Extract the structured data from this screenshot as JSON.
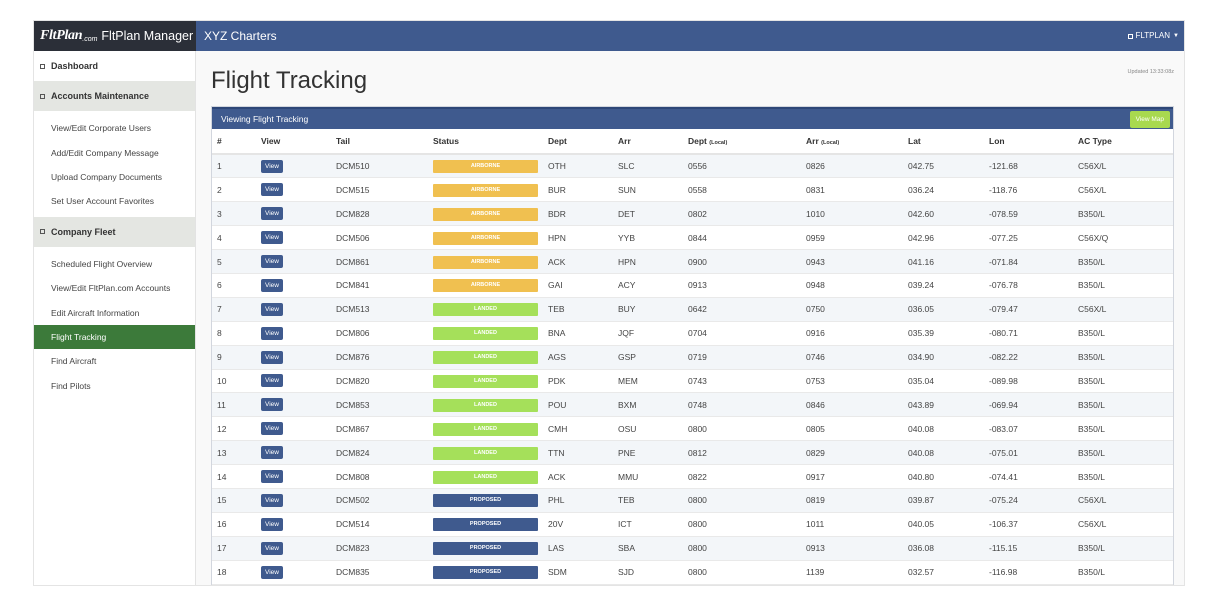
{
  "brand": {
    "logo_text": "FltPlan",
    "logo_suffix": ".com",
    "app_title": "FltPlan Manager"
  },
  "header": {
    "company": "XYZ Charters",
    "user": "FLTPLAN"
  },
  "sidebar": {
    "dashboard": "Dashboard",
    "accounts": {
      "title": "Accounts Maintenance",
      "items": [
        "View/Edit Corporate Users",
        "Add/Edit Company Message",
        "Upload Company Documents",
        "Set User Account Favorites"
      ]
    },
    "fleet": {
      "title": "Company Fleet",
      "items": [
        "Scheduled Flight Overview",
        "View/Edit FltPlan.com Accounts",
        "Edit Aircraft Information",
        "Flight Tracking",
        "Find Aircraft",
        "Find Pilots"
      ]
    },
    "active_item": "Flight Tracking"
  },
  "page": {
    "title": "Flight Tracking",
    "updated": "Updated 13:33:08z"
  },
  "panel": {
    "title": "Viewing Flight Tracking",
    "map_button": "View Map"
  },
  "table": {
    "headers": {
      "num": "#",
      "view": "View",
      "tail": "Tail",
      "status": "Status",
      "dept": "Dept",
      "arr": "Arr",
      "dept_local": "Dept",
      "dept_local_small": "(Local)",
      "arr_local": "Arr",
      "arr_local_small": "(Local)",
      "lat": "Lat",
      "lon": "Lon",
      "actype": "AC Type"
    },
    "view_label": "View",
    "status_colors": {
      "AIRBORNE": "#f0c050",
      "LANDED": "#a5e05a",
      "PROPOSED": "#3f5a8e"
    },
    "rows": [
      {
        "num": "1",
        "tail": "DCM510",
        "status": "AIRBORNE",
        "dept": "OTH",
        "arr": "SLC",
        "dept_local": "0556",
        "arr_local": "0826",
        "lat": "042.75",
        "lon": "-121.68",
        "actype": "C56X/L"
      },
      {
        "num": "2",
        "tail": "DCM515",
        "status": "AIRBORNE",
        "dept": "BUR",
        "arr": "SUN",
        "dept_local": "0558",
        "arr_local": "0831",
        "lat": "036.24",
        "lon": "-118.76",
        "actype": "C56X/L"
      },
      {
        "num": "3",
        "tail": "DCM828",
        "status": "AIRBORNE",
        "dept": "BDR",
        "arr": "DET",
        "dept_local": "0802",
        "arr_local": "1010",
        "lat": "042.60",
        "lon": "-078.59",
        "actype": "B350/L"
      },
      {
        "num": "4",
        "tail": "DCM506",
        "status": "AIRBORNE",
        "dept": "HPN",
        "arr": "YYB",
        "dept_local": "0844",
        "arr_local": "0959",
        "lat": "042.96",
        "lon": "-077.25",
        "actype": "C56X/Q"
      },
      {
        "num": "5",
        "tail": "DCM861",
        "status": "AIRBORNE",
        "dept": "ACK",
        "arr": "HPN",
        "dept_local": "0900",
        "arr_local": "0943",
        "lat": "041.16",
        "lon": "-071.84",
        "actype": "B350/L"
      },
      {
        "num": "6",
        "tail": "DCM841",
        "status": "AIRBORNE",
        "dept": "GAI",
        "arr": "ACY",
        "dept_local": "0913",
        "arr_local": "0948",
        "lat": "039.24",
        "lon": "-076.78",
        "actype": "B350/L"
      },
      {
        "num": "7",
        "tail": "DCM513",
        "status": "LANDED",
        "dept": "TEB",
        "arr": "BUY",
        "dept_local": "0642",
        "arr_local": "0750",
        "lat": "036.05",
        "lon": "-079.47",
        "actype": "C56X/L"
      },
      {
        "num": "8",
        "tail": "DCM806",
        "status": "LANDED",
        "dept": "BNA",
        "arr": "JQF",
        "dept_local": "0704",
        "arr_local": "0916",
        "lat": "035.39",
        "lon": "-080.71",
        "actype": "B350/L"
      },
      {
        "num": "9",
        "tail": "DCM876",
        "status": "LANDED",
        "dept": "AGS",
        "arr": "GSP",
        "dept_local": "0719",
        "arr_local": "0746",
        "lat": "034.90",
        "lon": "-082.22",
        "actype": "B350/L"
      },
      {
        "num": "10",
        "tail": "DCM820",
        "status": "LANDED",
        "dept": "PDK",
        "arr": "MEM",
        "dept_local": "0743",
        "arr_local": "0753",
        "lat": "035.04",
        "lon": "-089.98",
        "actype": "B350/L"
      },
      {
        "num": "11",
        "tail": "DCM853",
        "status": "LANDED",
        "dept": "POU",
        "arr": "BXM",
        "dept_local": "0748",
        "arr_local": "0846",
        "lat": "043.89",
        "lon": "-069.94",
        "actype": "B350/L"
      },
      {
        "num": "12",
        "tail": "DCM867",
        "status": "LANDED",
        "dept": "CMH",
        "arr": "OSU",
        "dept_local": "0800",
        "arr_local": "0805",
        "lat": "040.08",
        "lon": "-083.07",
        "actype": "B350/L"
      },
      {
        "num": "13",
        "tail": "DCM824",
        "status": "LANDED",
        "dept": "TTN",
        "arr": "PNE",
        "dept_local": "0812",
        "arr_local": "0829",
        "lat": "040.08",
        "lon": "-075.01",
        "actype": "B350/L"
      },
      {
        "num": "14",
        "tail": "DCM808",
        "status": "LANDED",
        "dept": "ACK",
        "arr": "MMU",
        "dept_local": "0822",
        "arr_local": "0917",
        "lat": "040.80",
        "lon": "-074.41",
        "actype": "B350/L"
      },
      {
        "num": "15",
        "tail": "DCM502",
        "status": "PROPOSED",
        "dept": "PHL",
        "arr": "TEB",
        "dept_local": "0800",
        "arr_local": "0819",
        "lat": "039.87",
        "lon": "-075.24",
        "actype": "C56X/L"
      },
      {
        "num": "16",
        "tail": "DCM514",
        "status": "PROPOSED",
        "dept": "20V",
        "arr": "ICT",
        "dept_local": "0800",
        "arr_local": "1011",
        "lat": "040.05",
        "lon": "-106.37",
        "actype": "C56X/L"
      },
      {
        "num": "17",
        "tail": "DCM823",
        "status": "PROPOSED",
        "dept": "LAS",
        "arr": "SBA",
        "dept_local": "0800",
        "arr_local": "0913",
        "lat": "036.08",
        "lon": "-115.15",
        "actype": "B350/L"
      },
      {
        "num": "18",
        "tail": "DCM835",
        "status": "PROPOSED",
        "dept": "SDM",
        "arr": "SJD",
        "dept_local": "0800",
        "arr_local": "1139",
        "lat": "032.57",
        "lon": "-116.98",
        "actype": "B350/L"
      }
    ]
  }
}
